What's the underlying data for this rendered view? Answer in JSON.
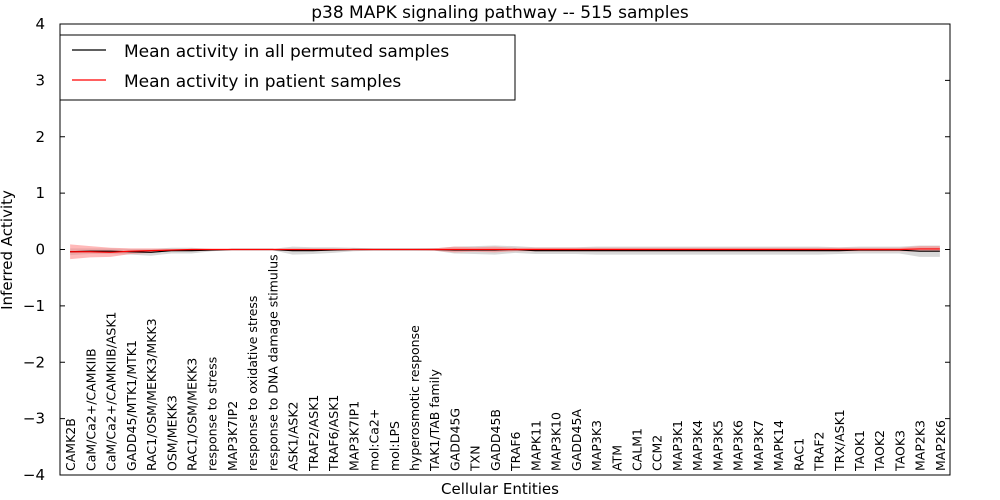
{
  "chart_data": {
    "type": "line",
    "title": "p38 MAPK signaling pathway -- 515 samples",
    "xlabel": "Cellular Entities",
    "ylabel": "Inferred Activity",
    "ylim": [
      -4,
      4
    ],
    "yticks": [
      -4,
      -3,
      -2,
      -1,
      0,
      1,
      2,
      3,
      4
    ],
    "ytick_labels": [
      "−4",
      "−3",
      "−2",
      "−1",
      "0",
      "1",
      "2",
      "3",
      "4"
    ],
    "legend_position": "top-left",
    "categories": [
      "CAMK2B",
      "CaM/Ca2+/CAMKIIB",
      "CaM/Ca2+/CAMKIIB/ASK1",
      "GADD45/MTK1/MTK1",
      "RAC1/OSM/MEKK3/MKK3",
      "OSM/MEKK3",
      "RAC1/OSM/MEKK3",
      "response to stress",
      "MAP3K7IP2",
      "response to oxidative stress",
      "response to DNA damage stimulus",
      "ASK1/ASK2",
      "TRAF2/ASK1",
      "TRAF6/ASK1",
      "MAP3K7IP1",
      "mol:Ca2+",
      "mol:LPS",
      "hyperosmotic response",
      "TAK1/TAB family",
      "GADD45G",
      "TXN",
      "GADD45B",
      "TRAF6",
      "MAPK11",
      "MAP3K10",
      "GADD45A",
      "MAP3K3",
      "ATM",
      "CALM1",
      "CCM2",
      "MAP3K1",
      "MAP3K4",
      "MAP3K5",
      "MAP3K6",
      "MAP3K7",
      "MAPK14",
      "RAC1",
      "TRAF2",
      "TRX/ASK1",
      "TAOK1",
      "TAOK2",
      "TAOK3",
      "MAP2K3",
      "MAP2K6"
    ],
    "series": [
      {
        "name": "Mean activity in all permuted samples",
        "color": "#000000",
        "band_color": "#c8c8c8",
        "values": [
          -0.04,
          -0.03,
          -0.03,
          -0.04,
          -0.05,
          -0.02,
          -0.02,
          -0.01,
          0,
          0,
          0,
          -0.02,
          -0.02,
          -0.01,
          0,
          0,
          0,
          0,
          0,
          -0.01,
          -0.01,
          -0.01,
          0,
          -0.02,
          -0.02,
          -0.02,
          -0.02,
          -0.02,
          -0.02,
          -0.02,
          -0.02,
          -0.02,
          -0.02,
          -0.02,
          -0.02,
          -0.02,
          -0.02,
          -0.02,
          -0.02,
          -0.01,
          -0.01,
          -0.01,
          -0.03,
          -0.03
        ],
        "band_half_width": [
          0.06,
          0.05,
          0.05,
          0.05,
          0.06,
          0.05,
          0.05,
          0.02,
          0.01,
          0.01,
          0.01,
          0.07,
          0.06,
          0.05,
          0.03,
          0.02,
          0.02,
          0.02,
          0.02,
          0.06,
          0.07,
          0.08,
          0.06,
          0.06,
          0.06,
          0.06,
          0.07,
          0.07,
          0.07,
          0.07,
          0.07,
          0.07,
          0.07,
          0.07,
          0.07,
          0.07,
          0.07,
          0.07,
          0.06,
          0.06,
          0.06,
          0.06,
          0.1,
          0.1
        ]
      },
      {
        "name": "Mean activity in patient samples",
        "color": "#ff0000",
        "band_color": "#ff8080",
        "values": [
          -0.04,
          -0.04,
          -0.05,
          -0.03,
          -0.02,
          -0.01,
          0,
          0,
          0,
          0,
          0,
          0,
          0,
          0,
          0,
          0,
          0,
          0,
          0,
          0,
          0,
          0,
          0,
          0,
          0,
          0,
          0,
          0,
          0,
          0,
          0,
          0,
          0,
          0,
          0,
          0,
          0,
          0,
          0,
          0,
          0,
          0,
          0.01,
          0.01
        ],
        "band_half_width": [
          0.13,
          0.1,
          0.08,
          0.05,
          0.04,
          0.02,
          0.01,
          0.01,
          0.01,
          0.01,
          0.01,
          0.01,
          0.01,
          0.01,
          0.01,
          0.01,
          0.01,
          0.01,
          0.02,
          0.05,
          0.04,
          0.05,
          0.03,
          0.03,
          0.03,
          0.03,
          0.03,
          0.03,
          0.03,
          0.03,
          0.03,
          0.03,
          0.03,
          0.03,
          0.03,
          0.03,
          0.03,
          0.03,
          0.03,
          0.03,
          0.03,
          0.03,
          0.05,
          0.05
        ]
      }
    ]
  }
}
